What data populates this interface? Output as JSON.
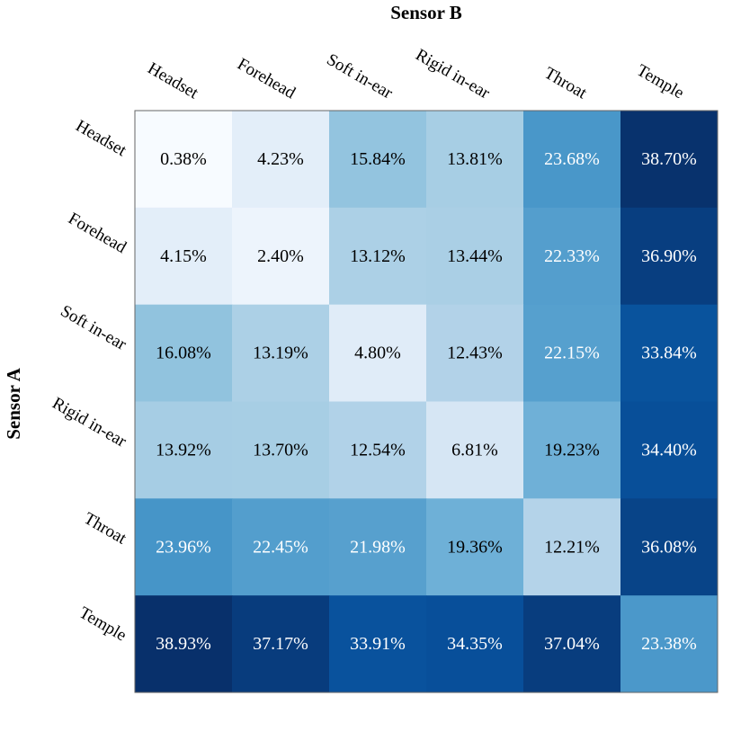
{
  "chart_data": {
    "type": "heatmap",
    "title": "",
    "xlabel": "Sensor B",
    "ylabel": "Sensor A",
    "x_categories": [
      "Headset",
      "Forehead",
      "Soft in-ear",
      "Rigid in-ear",
      "Throat",
      "Temple"
    ],
    "y_categories": [
      "Headset",
      "Forehead",
      "Soft in-ear",
      "Rigid in-ear",
      "Throat",
      "Temple"
    ],
    "values": [
      [
        0.38,
        4.23,
        15.84,
        13.81,
        23.68,
        38.7
      ],
      [
        4.15,
        2.4,
        13.12,
        13.44,
        22.33,
        36.9
      ],
      [
        16.08,
        13.19,
        4.8,
        12.43,
        22.15,
        33.84
      ],
      [
        13.92,
        13.7,
        12.54,
        6.81,
        19.23,
        34.4
      ],
      [
        23.96,
        22.45,
        21.98,
        19.36,
        12.21,
        36.08
      ],
      [
        38.93,
        37.17,
        33.91,
        34.35,
        37.04,
        23.38
      ]
    ],
    "value_labels": [
      [
        "0.38%",
        "4.23%",
        "15.84%",
        "13.81%",
        "23.68%",
        "38.70%"
      ],
      [
        "4.15%",
        "2.40%",
        "13.12%",
        "13.44%",
        "22.33%",
        "36.90%"
      ],
      [
        "16.08%",
        "13.19%",
        "4.80%",
        "12.43%",
        "22.15%",
        "33.84%"
      ],
      [
        "13.92%",
        "13.70%",
        "12.54%",
        "6.81%",
        "19.23%",
        "34.40%"
      ],
      [
        "23.96%",
        "22.45%",
        "21.98%",
        "19.36%",
        "12.21%",
        "36.08%"
      ],
      [
        "38.93%",
        "37.17%",
        "33.91%",
        "34.35%",
        "37.04%",
        "23.38%"
      ]
    ],
    "colormap": "Blues",
    "color_range": [
      0.38,
      38.93
    ],
    "colors": {
      "low": "#f7fbff",
      "high": "#08306b",
      "text_dark": "#000000",
      "text_light": "#ffffff",
      "border": "#666666"
    },
    "grid": false,
    "legend": "none"
  }
}
